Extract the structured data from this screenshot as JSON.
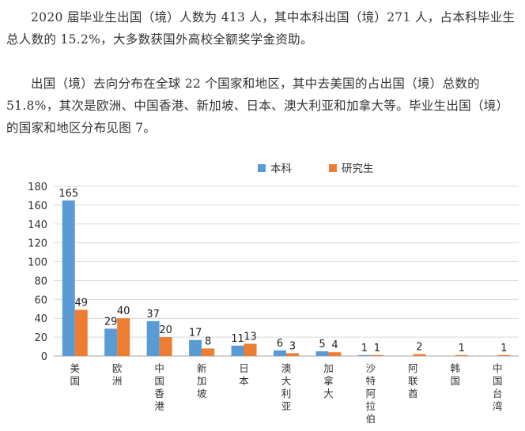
{
  "article": {
    "paragraph_1": "2020 届毕业生出国（境）人数为 413 人，其中本科出国（境）271 人，占本科毕业生总人数的 15.2%，大多数获国外高校全额奖学金资助。",
    "paragraph_2": "出国（境）去向分布在全球 22 个国家和地区，其中去美国的占出国（境）总数的 51.8%，其次是欧洲、中国香港、新加坡、日本、澳大利亚和加拿大等。毕业生出国（境）的国家和地区分布见图 7。"
  },
  "colors": {
    "undergrad": "#5b9bd5",
    "graduate": "#ed7d31"
  },
  "chart_data": {
    "type": "bar",
    "categories": [
      "美国",
      "欧洲",
      "中国香港",
      "新加坡",
      "日本",
      "澳大利亚",
      "加拿大",
      "沙特阿拉伯",
      "阿联酋",
      "韩国",
      "中国台湾"
    ],
    "series": [
      {
        "name": "本科",
        "values": [
          165,
          29,
          37,
          17,
          11,
          6,
          5,
          1,
          null,
          null,
          null
        ]
      },
      {
        "name": "研究生",
        "values": [
          49,
          40,
          20,
          8,
          13,
          3,
          4,
          1,
          2,
          1,
          1
        ]
      }
    ],
    "ylim": [
      0,
      180
    ],
    "yticks": [
      0,
      20,
      40,
      60,
      80,
      100,
      120,
      140,
      160,
      180
    ],
    "grid": true,
    "legend": "top-center",
    "title": "",
    "xlabel": "",
    "ylabel": ""
  }
}
